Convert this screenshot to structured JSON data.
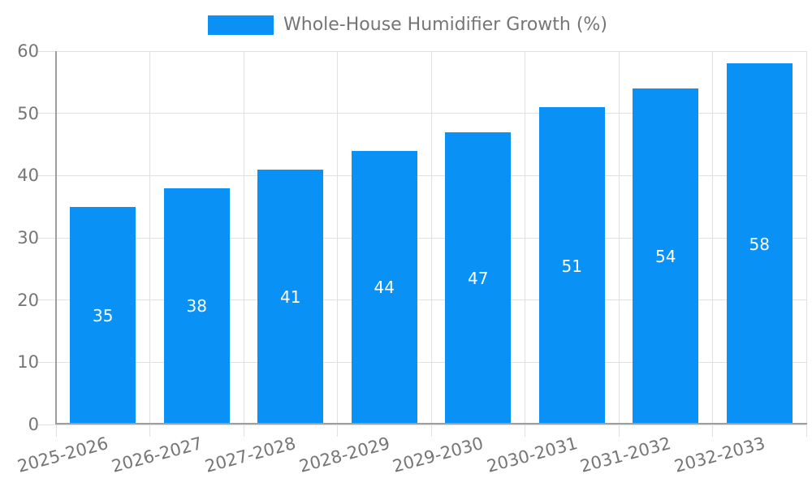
{
  "legend": {
    "label": "Whole-House Humidifier Growth (%)"
  },
  "chart_data": {
    "type": "bar",
    "title": "Whole-House Humidifier Growth (%)",
    "categories": [
      "2025-2026",
      "2026-2027",
      "2027-2028",
      "2028-2029",
      "2029-2030",
      "2030-2031",
      "2031-2032",
      "2032-2033"
    ],
    "values": [
      35,
      38,
      41,
      44,
      47,
      51,
      54,
      58
    ],
    "bar_value_labels": [
      "35",
      "38",
      "41",
      "44",
      "47",
      "51",
      "54",
      "58"
    ],
    "xlabel": "",
    "ylabel": "",
    "ylim": [
      0,
      60
    ],
    "yticks": [
      0,
      10,
      20,
      30,
      40,
      50,
      60
    ],
    "grid": true,
    "legend_position": "top-center",
    "x_tick_rotation_deg": -15,
    "colors": {
      "bar": "#0A91F5",
      "bar_label": "#FFFFFF",
      "tick_label": "#757575",
      "axis_line": "#9E9E9E",
      "gridline": "#E0E0E0",
      "background": "#FFFFFF"
    }
  }
}
